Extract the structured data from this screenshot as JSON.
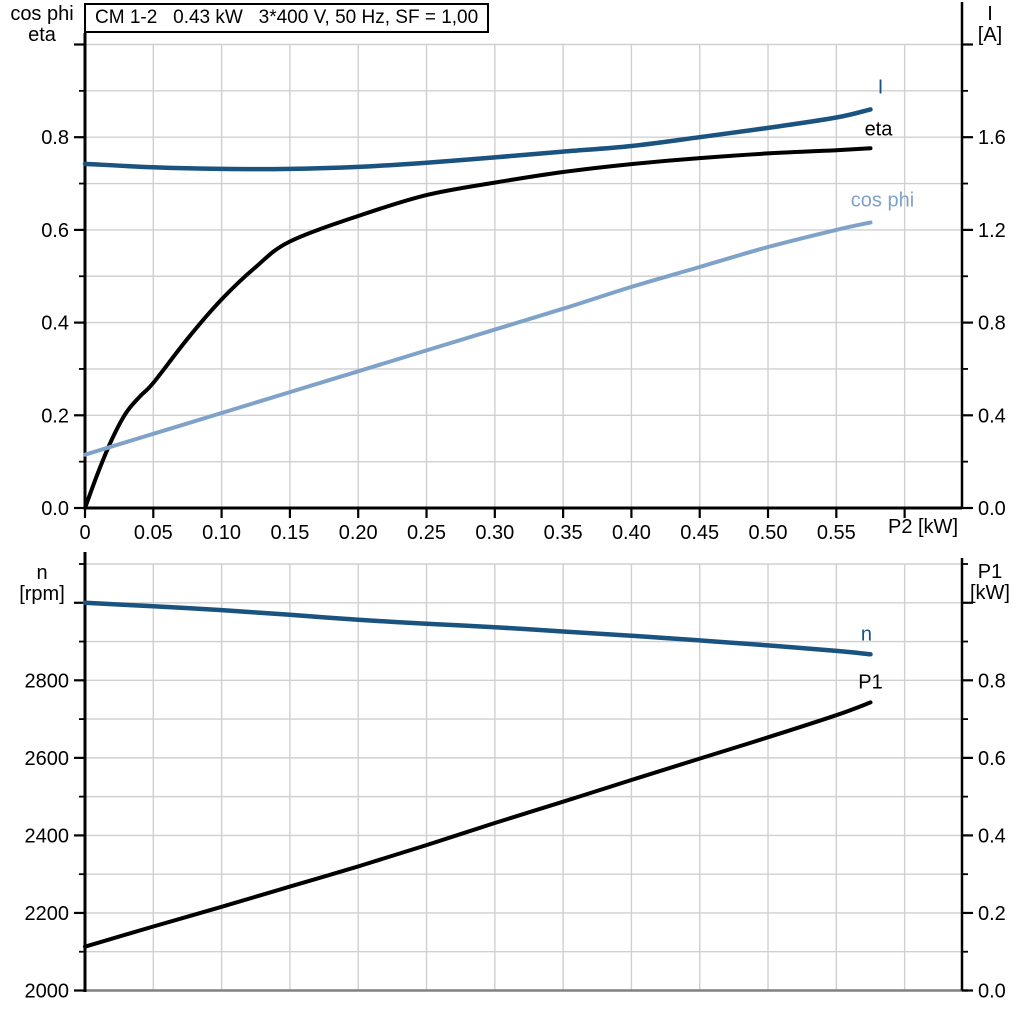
{
  "header": {
    "title": "CM 1-2   0.43 kW   3*400 V, 50 Hz, SF = 1,00"
  },
  "axis_titles": {
    "top_left": [
      "cos phi",
      "eta"
    ],
    "top_right": [
      "I",
      "[A]"
    ],
    "x": "P2 [kW]",
    "bottom_left": [
      "n",
      "[rpm]"
    ],
    "bottom_right": [
      "P1",
      "[kW]"
    ]
  },
  "colors": {
    "dark_blue": "#1a5380",
    "light_blue": "#7fa3c8",
    "black": "#000000",
    "grid": "#d0d0d0",
    "axis": "#000000",
    "bottom_frame_gray": "#808080",
    "background": "#ffffff"
  },
  "chart_data": [
    {
      "type": "line",
      "title": "CM 1-2   0.43 kW   3*400 V, 50 Hz, SF = 1,00",
      "xlabel": "P2 [kW]",
      "x_range": [
        0,
        0.642
      ],
      "x_tick_values": [
        0,
        0.05,
        0.1,
        0.15,
        0.2,
        0.25,
        0.3,
        0.35,
        0.4,
        0.45,
        0.5,
        0.55,
        0.6
      ],
      "x_tick_labels": [
        "0",
        "0.05",
        "0.10",
        "0.15",
        "0.20",
        "0.25",
        "0.30",
        "0.35",
        "0.40",
        "0.45",
        "0.50",
        "0.55",
        null
      ],
      "left_axis": {
        "title": "cos phi / eta",
        "range": [
          0,
          1.0
        ],
        "major_ticks": [
          0,
          0.2,
          0.4,
          0.6,
          0.8,
          1.0
        ],
        "tick_labels": [
          "0.0",
          "0.2",
          "0.4",
          "0.6",
          "0.8",
          null
        ],
        "minor_step": 0.1
      },
      "right_axis": {
        "title": "I [A]",
        "range": [
          0,
          2.0
        ],
        "major_ticks": [
          0,
          0.4,
          0.8,
          1.2,
          1.6,
          2.0
        ],
        "tick_labels": [
          "0.0",
          "0.4",
          "0.8",
          "1.2",
          "1.6",
          null
        ],
        "minor_step": 0.2
      },
      "grid": {
        "x_step": 0.05,
        "left_y_step": 0.1,
        "on": true
      },
      "legend_position": "curve-end-labels",
      "series": [
        {
          "name": "I",
          "label": "I",
          "axis": "right",
          "color_key": "dark_blue",
          "points": [
            [
              0,
              1.485
            ],
            [
              0.05,
              1.47
            ],
            [
              0.1,
              1.463
            ],
            [
              0.15,
              1.463
            ],
            [
              0.2,
              1.472
            ],
            [
              0.25,
              1.49
            ],
            [
              0.3,
              1.513
            ],
            [
              0.35,
              1.538
            ],
            [
              0.4,
              1.562
            ],
            [
              0.45,
              1.6
            ],
            [
              0.5,
              1.64
            ],
            [
              0.55,
              1.685
            ],
            [
              0.575,
              1.72
            ]
          ]
        },
        {
          "name": "eta",
          "label": "eta",
          "axis": "left",
          "color_key": "black",
          "points": [
            [
              0,
              0
            ],
            [
              0.01,
              0.08
            ],
            [
              0.02,
              0.15
            ],
            [
              0.03,
              0.205
            ],
            [
              0.04,
              0.24
            ],
            [
              0.05,
              0.27
            ],
            [
              0.075,
              0.365
            ],
            [
              0.1,
              0.45
            ],
            [
              0.125,
              0.52
            ],
            [
              0.15,
              0.575
            ],
            [
              0.2,
              0.63
            ],
            [
              0.25,
              0.675
            ],
            [
              0.3,
              0.702
            ],
            [
              0.35,
              0.725
            ],
            [
              0.4,
              0.742
            ],
            [
              0.45,
              0.755
            ],
            [
              0.5,
              0.765
            ],
            [
              0.55,
              0.772
            ],
            [
              0.575,
              0.776
            ]
          ]
        },
        {
          "name": "cos_phi",
          "label": "cos phi",
          "axis": "left",
          "color_key": "light_blue",
          "points": [
            [
              0,
              0.115
            ],
            [
              0.05,
              0.16
            ],
            [
              0.1,
              0.205
            ],
            [
              0.15,
              0.25
            ],
            [
              0.2,
              0.295
            ],
            [
              0.25,
              0.34
            ],
            [
              0.3,
              0.385
            ],
            [
              0.35,
              0.43
            ],
            [
              0.4,
              0.477
            ],
            [
              0.45,
              0.52
            ],
            [
              0.5,
              0.563
            ],
            [
              0.55,
              0.6
            ],
            [
              0.575,
              0.616
            ]
          ]
        }
      ]
    },
    {
      "type": "line",
      "title": "",
      "xlabel": "",
      "x_range": [
        0,
        0.642
      ],
      "x_tick_values": [],
      "x_tick_labels": [],
      "left_axis": {
        "title": "n [rpm]",
        "range": [
          2000,
          3100
        ],
        "major_ticks": [
          2000,
          2200,
          2400,
          2600,
          2800,
          3000
        ],
        "tick_labels": [
          "2000",
          "2200",
          "2400",
          "2600",
          "2800",
          null
        ],
        "minor_step": 100
      },
      "right_axis": {
        "title": "P1 [kW]",
        "range": [
          0,
          1.1
        ],
        "major_ticks": [
          0,
          0.2,
          0.4,
          0.6,
          0.8,
          1.0
        ],
        "tick_labels": [
          "0.0",
          "0.2",
          "0.4",
          "0.6",
          "0.8",
          null
        ],
        "minor_step": 0.1
      },
      "grid": {
        "x_step": 0.05,
        "left_y_step": 100,
        "on": true
      },
      "legend_position": "curve-end-labels",
      "series": [
        {
          "name": "n",
          "label": "n",
          "axis": "left",
          "color_key": "dark_blue",
          "points": [
            [
              0,
              3000
            ],
            [
              0.05,
              2991
            ],
            [
              0.1,
              2981
            ],
            [
              0.15,
              2969
            ],
            [
              0.2,
              2956
            ],
            [
              0.25,
              2946
            ],
            [
              0.3,
              2937
            ],
            [
              0.35,
              2926
            ],
            [
              0.4,
              2915
            ],
            [
              0.45,
              2903
            ],
            [
              0.5,
              2890
            ],
            [
              0.55,
              2876
            ],
            [
              0.575,
              2867
            ]
          ]
        },
        {
          "name": "P1",
          "label": "P1",
          "axis": "right",
          "color_key": "black",
          "points": [
            [
              0,
              0.113
            ],
            [
              0.05,
              0.165
            ],
            [
              0.1,
              0.216
            ],
            [
              0.15,
              0.268
            ],
            [
              0.2,
              0.32
            ],
            [
              0.25,
              0.375
            ],
            [
              0.3,
              0.432
            ],
            [
              0.35,
              0.487
            ],
            [
              0.4,
              0.543
            ],
            [
              0.45,
              0.598
            ],
            [
              0.5,
              0.653
            ],
            [
              0.55,
              0.71
            ],
            [
              0.575,
              0.743
            ]
          ]
        }
      ]
    }
  ]
}
